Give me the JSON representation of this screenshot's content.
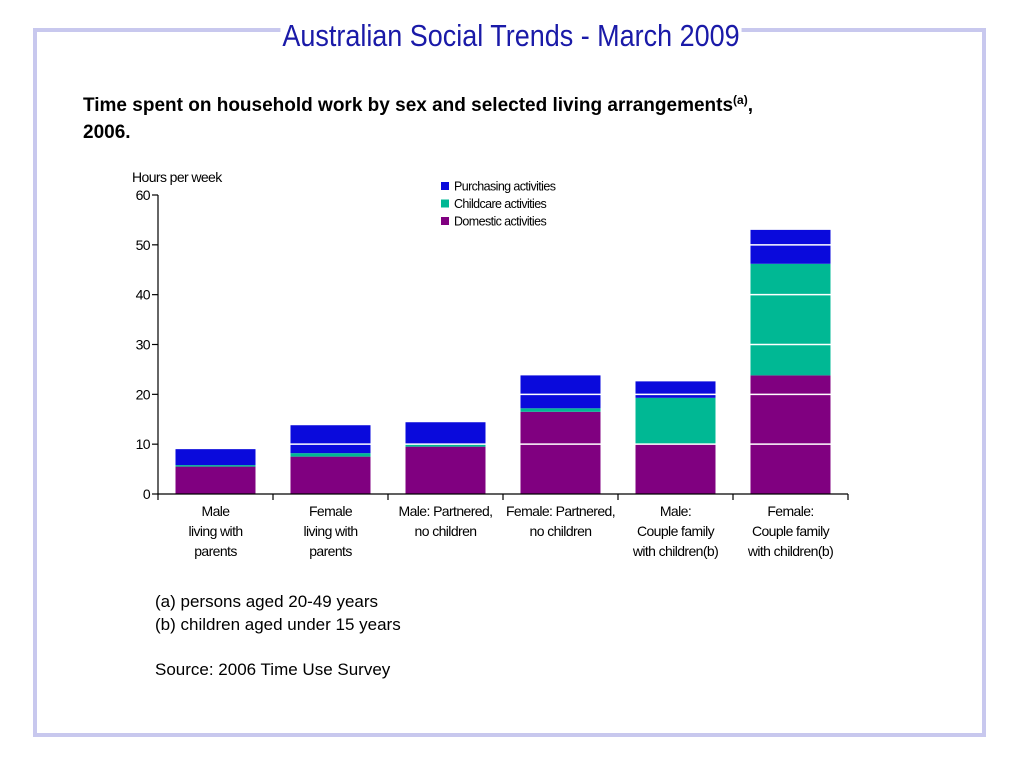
{
  "slide": {
    "title": "Australian Social Trends - March 2009"
  },
  "chart_title": {
    "text": "Time spent on household work by sex and selected living arrangements",
    "superscript": "(a)",
    "suffix": ",",
    "line2": "2006."
  },
  "chart_data": {
    "type": "bar",
    "stacked": true,
    "ylabel": "Hours per week",
    "ylim": [
      0,
      60
    ],
    "yticks": [
      0,
      10,
      20,
      30,
      40,
      50,
      60
    ],
    "grid": "white lines at each 10-hour interval over bars",
    "legend_position": "top",
    "categories": [
      [
        "Male",
        "living with",
        "parents"
      ],
      [
        "Female",
        "living with",
        "parents"
      ],
      [
        "Male: Partnered,",
        "no children"
      ],
      [
        "Female: Partnered,",
        "no children"
      ],
      [
        "Male:",
        "Couple family",
        "with children(b)"
      ],
      [
        "Female:",
        "Couple family",
        "with children(b)"
      ]
    ],
    "series": [
      {
        "name": "Domestic activities",
        "color": "#800080",
        "values": [
          5.5,
          7.5,
          9.5,
          16.5,
          10,
          23.8
        ]
      },
      {
        "name": "Childcare activities",
        "color": "#00b894",
        "values": [
          0.3,
          0.7,
          0.5,
          0.7,
          9.3,
          22.4
        ]
      },
      {
        "name": "Purchasing activities",
        "color": "#0a0adc",
        "values": [
          3.2,
          5.6,
          4.4,
          6.6,
          3.3,
          6.8
        ]
      }
    ],
    "legend_order": [
      "Purchasing activities",
      "Childcare activities",
      "Domestic activities"
    ]
  },
  "footnotes": {
    "a": "(a) persons aged 20-49 years",
    "b": "(b) children aged under 15 years",
    "source": "Source: 2006 Time Use Survey"
  }
}
